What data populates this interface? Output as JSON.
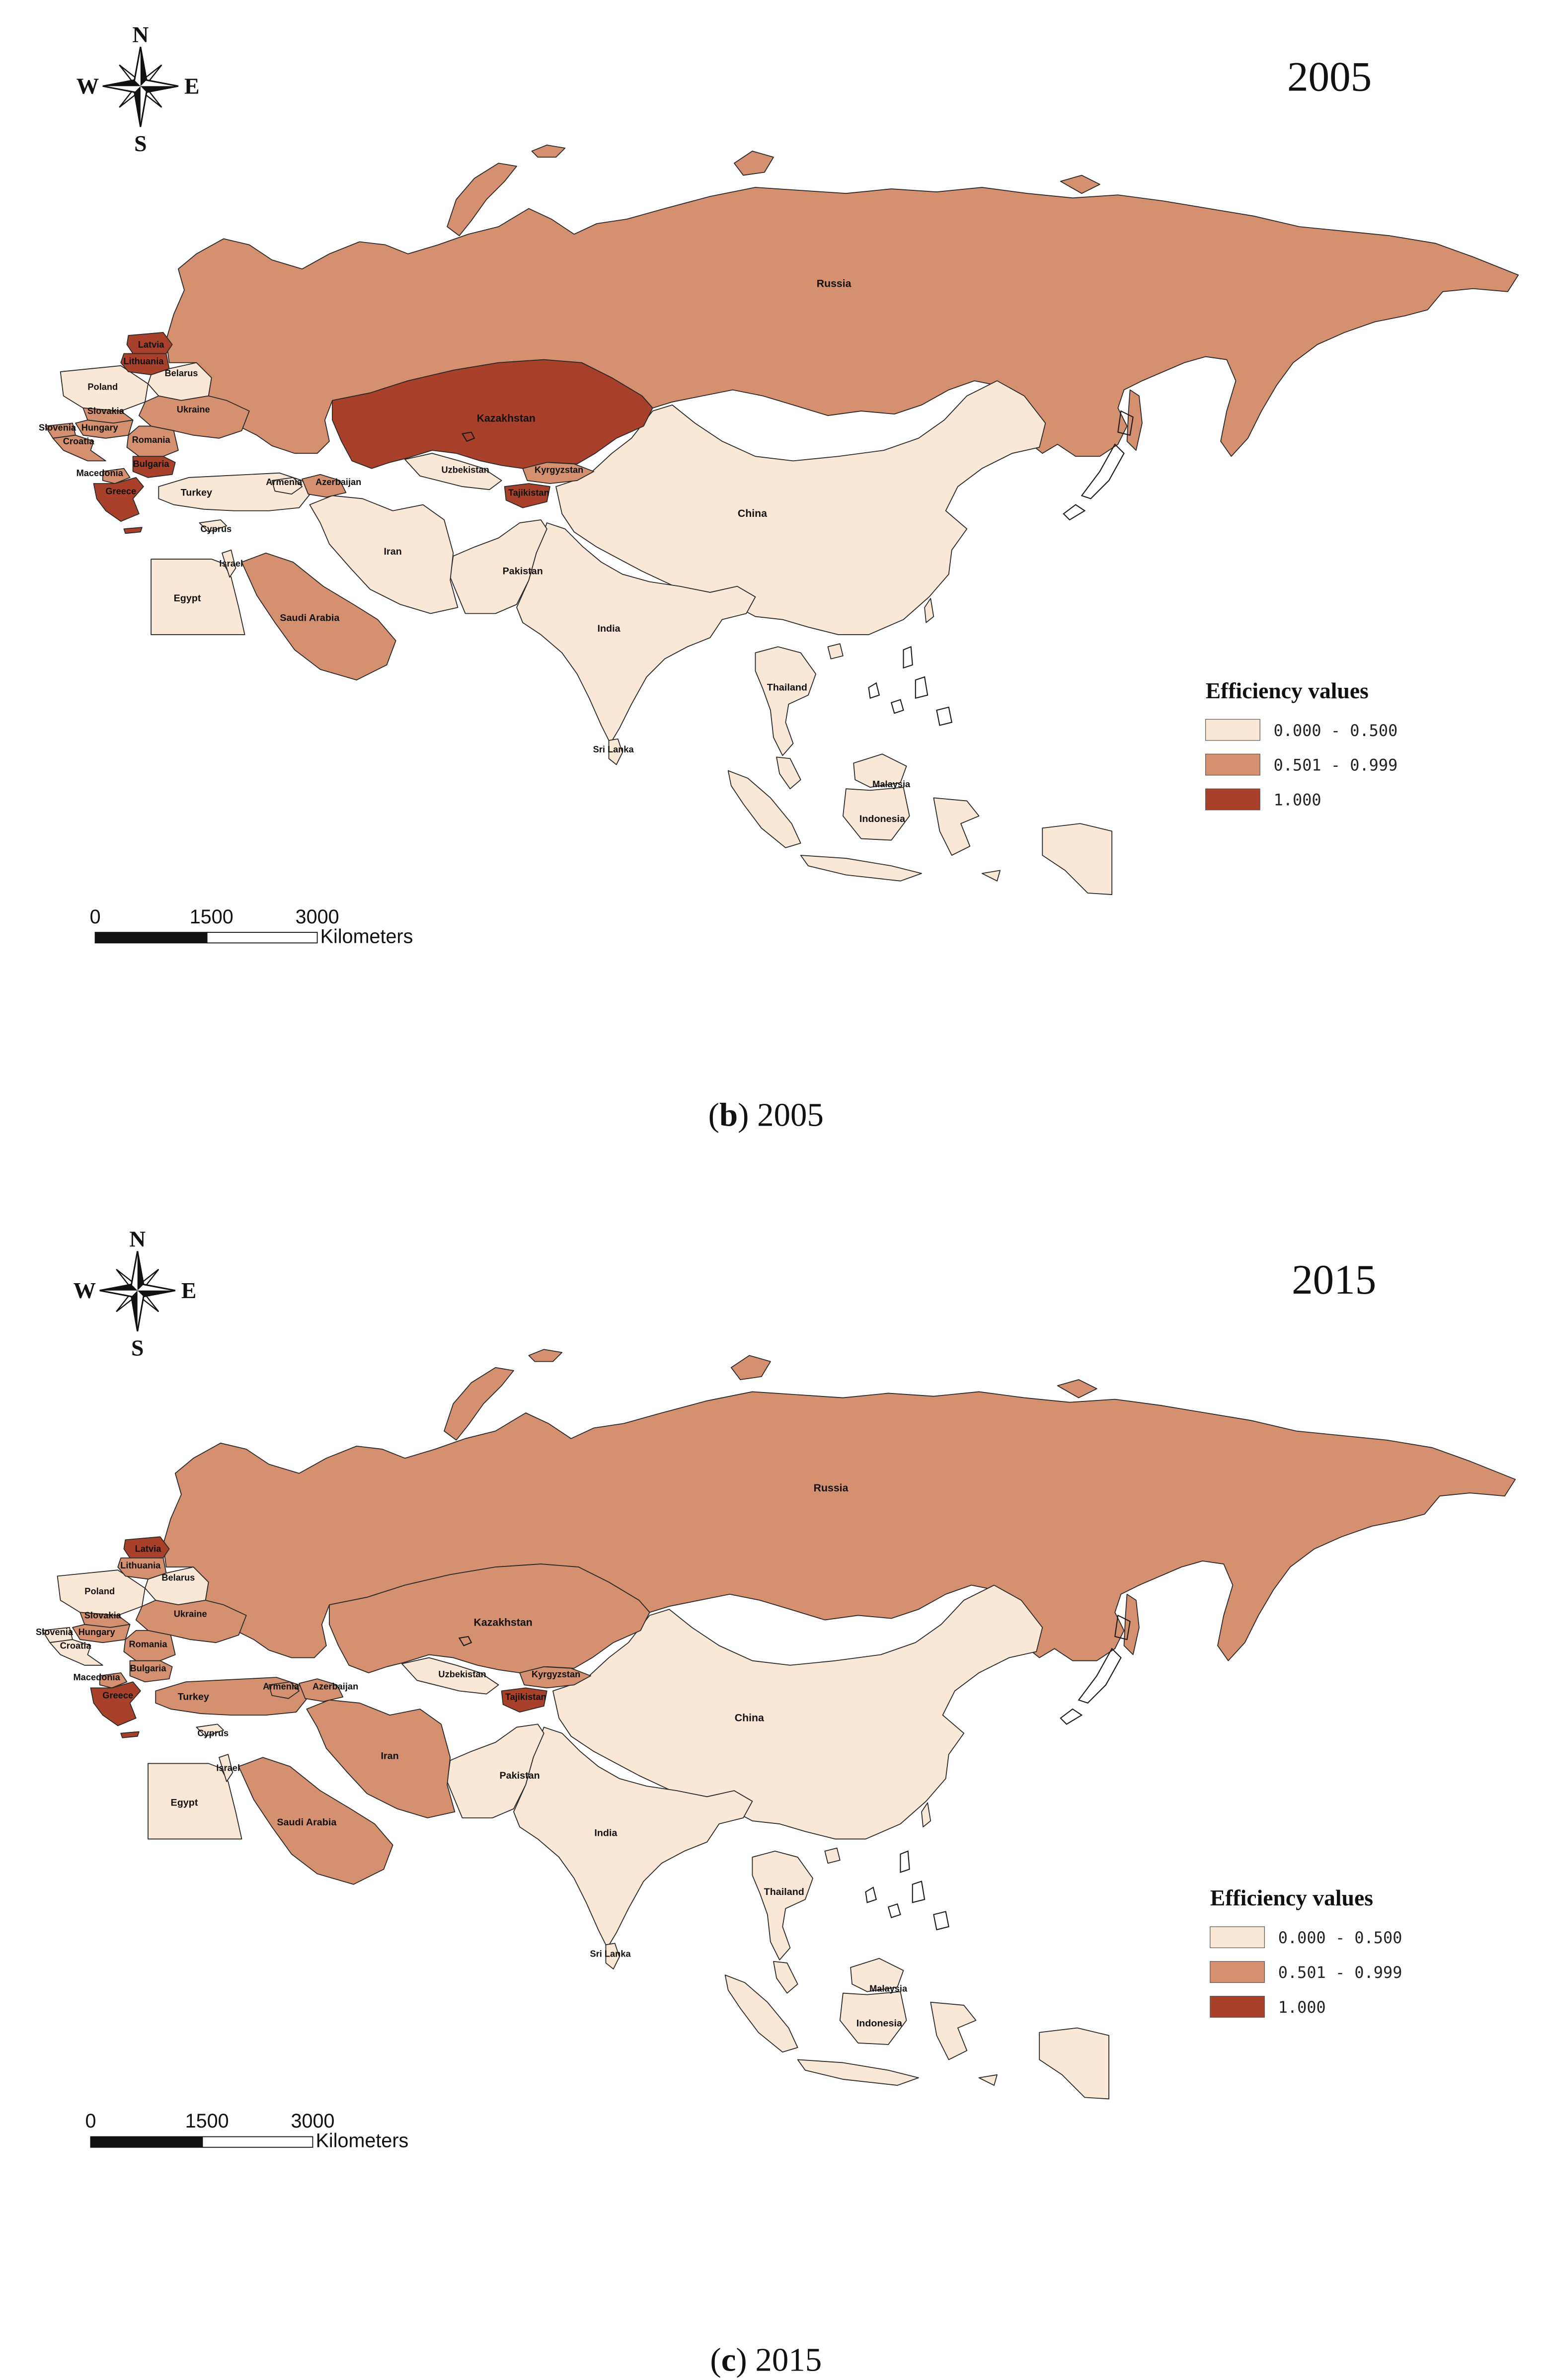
{
  "legend": {
    "title": "Efficiency values",
    "classes": [
      {
        "label": "0.000 - 0.500",
        "color": "#FAE8D6"
      },
      {
        "label": "0.501 - 0.999",
        "color": "#D4906F"
      },
      {
        "label": "1.000",
        "color": "#A8402A"
      }
    ]
  },
  "compass": {
    "north": "N",
    "south": "S",
    "west": "W",
    "east": "E"
  },
  "scale_bar": {
    "ticks": [
      "0",
      "1500",
      "3000"
    ],
    "unit": "Kilometers"
  },
  "maps": [
    {
      "year": "2005",
      "caption": {
        "open": "(",
        "letter": "b",
        "rest": ") 2005"
      },
      "countries": [
        {
          "name": "Russia",
          "class": 1
        },
        {
          "name": "Kazakhstan",
          "class": 2
        },
        {
          "name": "China",
          "class": 0
        },
        {
          "name": "India",
          "class": 0
        },
        {
          "name": "Iran",
          "class": 0
        },
        {
          "name": "Pakistan",
          "class": 0
        },
        {
          "name": "Saudi Arabia",
          "class": 1
        },
        {
          "name": "Egypt",
          "class": 0
        },
        {
          "name": "Turkey",
          "class": 0
        },
        {
          "name": "Israel",
          "class": 0
        },
        {
          "name": "Cyprus",
          "class": 0
        },
        {
          "name": "Armenia",
          "class": 0
        },
        {
          "name": "Azerbaijan",
          "class": 1
        },
        {
          "name": "Uzbekistan",
          "class": 0
        },
        {
          "name": "Kyrgyzstan",
          "class": 1
        },
        {
          "name": "Tajikistan",
          "class": 2
        },
        {
          "name": "Thailand",
          "class": 0
        },
        {
          "name": "Malaysia",
          "class": 0
        },
        {
          "name": "Indonesia",
          "class": 0
        },
        {
          "name": "Sri Lanka",
          "class": 0
        },
        {
          "name": "Poland",
          "class": 0
        },
        {
          "name": "Belarus",
          "class": 0
        },
        {
          "name": "Ukraine",
          "class": 1
        },
        {
          "name": "Latvia",
          "class": 2
        },
        {
          "name": "Lithuania",
          "class": 2
        },
        {
          "name": "Slovakia",
          "class": 1
        },
        {
          "name": "Slovenia",
          "class": 1
        },
        {
          "name": "Hungary",
          "class": 1
        },
        {
          "name": "Croatia",
          "class": 1
        },
        {
          "name": "Romania",
          "class": 1
        },
        {
          "name": "Bulgaria",
          "class": 2
        },
        {
          "name": "Macedonia",
          "class": 1
        },
        {
          "name": "Greece",
          "class": 2
        }
      ]
    },
    {
      "year": "2015",
      "caption": {
        "open": "(",
        "letter": "c",
        "rest": ") 2015"
      },
      "countries": [
        {
          "name": "Russia",
          "class": 1
        },
        {
          "name": "Kazakhstan",
          "class": 1
        },
        {
          "name": "China",
          "class": 0
        },
        {
          "name": "India",
          "class": 0
        },
        {
          "name": "Iran",
          "class": 1
        },
        {
          "name": "Pakistan",
          "class": 0
        },
        {
          "name": "Saudi Arabia",
          "class": 1
        },
        {
          "name": "Egypt",
          "class": 0
        },
        {
          "name": "Turkey",
          "class": 1
        },
        {
          "name": "Israel",
          "class": 0
        },
        {
          "name": "Cyprus",
          "class": 0
        },
        {
          "name": "Armenia",
          "class": 1
        },
        {
          "name": "Azerbaijan",
          "class": 1
        },
        {
          "name": "Uzbekistan",
          "class": 0
        },
        {
          "name": "Kyrgyzstan",
          "class": 1
        },
        {
          "name": "Tajikistan",
          "class": 2
        },
        {
          "name": "Thailand",
          "class": 0
        },
        {
          "name": "Malaysia",
          "class": 0
        },
        {
          "name": "Indonesia",
          "class": 0
        },
        {
          "name": "Sri Lanka",
          "class": 0
        },
        {
          "name": "Poland",
          "class": 0
        },
        {
          "name": "Belarus",
          "class": 0
        },
        {
          "name": "Ukraine",
          "class": 1
        },
        {
          "name": "Latvia",
          "class": 2
        },
        {
          "name": "Lithuania",
          "class": 1
        },
        {
          "name": "Slovakia",
          "class": 1
        },
        {
          "name": "Slovenia",
          "class": 0
        },
        {
          "name": "Hungary",
          "class": 1
        },
        {
          "name": "Croatia",
          "class": 0
        },
        {
          "name": "Romania",
          "class": 1
        },
        {
          "name": "Bulgaria",
          "class": 1
        },
        {
          "name": "Macedonia",
          "class": 1
        },
        {
          "name": "Greece",
          "class": 2
        }
      ]
    }
  ]
}
